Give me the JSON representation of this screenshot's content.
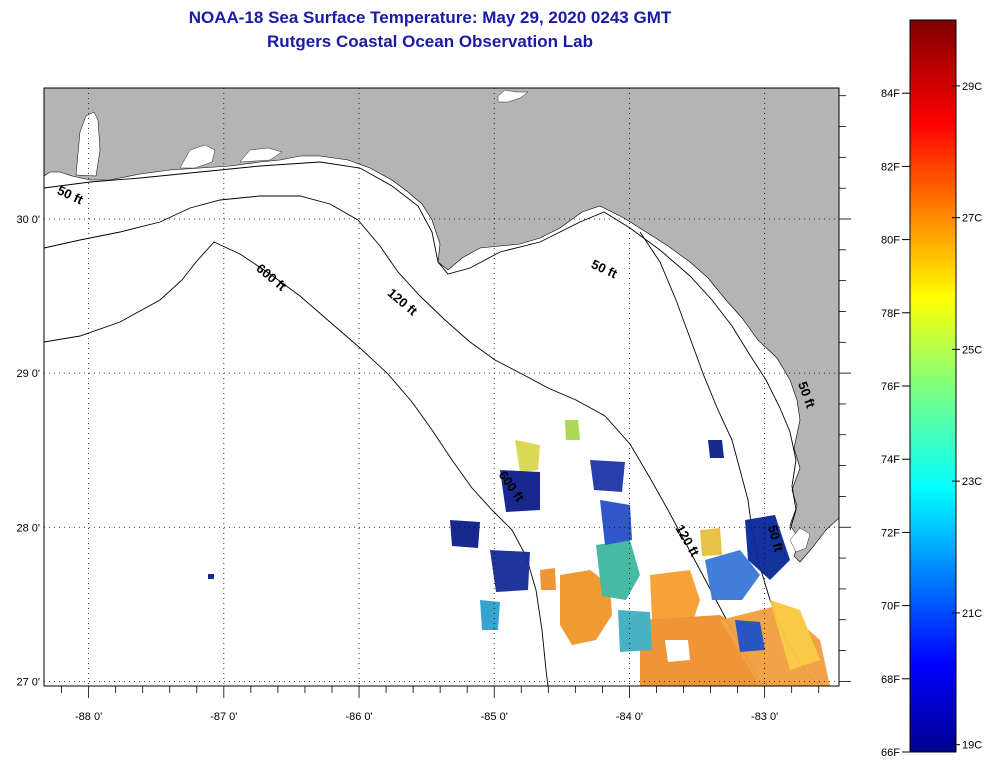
{
  "title": {
    "line1": "NOAA-18 Sea Surface Temperature:  May 29, 2020 0243 GMT",
    "line2": "Rutgers Coastal Ocean Observation Lab"
  },
  "map": {
    "lon_range": [
      -88.33,
      -82.45
    ],
    "lat_range": [
      26.97,
      30.85
    ],
    "lon_ticks": [
      -88,
      -87,
      -86,
      -85,
      -84,
      -83
    ],
    "lon_tick_labels": [
      "-88 0'",
      "-87 0'",
      "-86 0'",
      "-85 0'",
      "-84 0'",
      "-83 0'"
    ],
    "lat_ticks": [
      27,
      28,
      29,
      30
    ],
    "lat_tick_labels": [
      "27 0'",
      "28 0'",
      "29 0'",
      "30 0'"
    ],
    "grid": "dotted",
    "land_color": "#b4b4b4",
    "water_color": "#ffffff",
    "contour_labels": [
      {
        "text": "50 ft",
        "lon": -88.15,
        "lat": 30.13
      },
      {
        "text": "600 ft",
        "lon": -86.67,
        "lat": 29.6
      },
      {
        "text": "120 ft",
        "lon": -85.7,
        "lat": 29.44
      },
      {
        "text": "50 ft",
        "lon": -84.2,
        "lat": 29.65
      },
      {
        "text": "600 ft",
        "lon": -84.9,
        "lat": 28.25
      },
      {
        "text": "120 ft",
        "lon": -83.6,
        "lat": 27.9
      },
      {
        "text": "50 ft",
        "lon": -82.95,
        "lat": 27.92
      },
      {
        "text": "50 ft",
        "lon": -82.72,
        "lat": 28.85
      }
    ]
  },
  "colorbar": {
    "name": "sea-surface-temperature",
    "f_labels": [
      "66F",
      "68F",
      "70F",
      "72F",
      "74F",
      "76F",
      "78F",
      "80F",
      "82F",
      "84F"
    ],
    "f_values": [
      66,
      68,
      70,
      72,
      74,
      76,
      78,
      80,
      82,
      84
    ],
    "c_labels": [
      "19C",
      "21C",
      "23C",
      "25C",
      "27C",
      "29C"
    ],
    "c_values": [
      19,
      21,
      23,
      25,
      27,
      29
    ],
    "min_f": 66,
    "max_f": 86
  }
}
